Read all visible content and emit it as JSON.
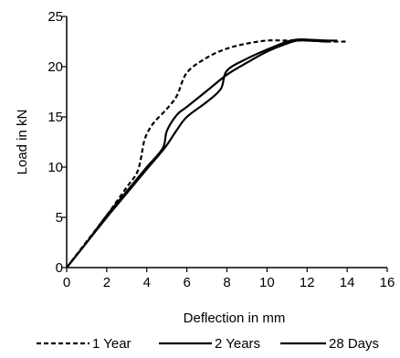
{
  "chart_data": {
    "type": "line",
    "title": "",
    "xlabel": "Deflection in mm",
    "ylabel": "Load in kN",
    "xlim": [
      0,
      16
    ],
    "ylim": [
      0,
      25
    ],
    "x_ticks": [
      0,
      2,
      4,
      6,
      8,
      10,
      12,
      14,
      16
    ],
    "y_ticks": [
      0,
      5,
      10,
      15,
      20,
      25
    ],
    "grid": false,
    "legend_position": "bottom",
    "line_color": "#000000",
    "series": [
      {
        "name": "1 Year",
        "style": "dashed",
        "x": [
          0,
          1,
          2,
          3,
          3.5,
          3.7,
          3.9,
          4.3,
          5,
          5.5,
          6,
          7,
          8,
          9,
          10,
          11,
          12,
          13,
          14
        ],
        "y": [
          0,
          2.6,
          5.2,
          8.0,
          9.4,
          10.8,
          12.8,
          14.3,
          15.8,
          17.1,
          19.4,
          20.9,
          21.8,
          22.3,
          22.6,
          22.6,
          22.6,
          22.5,
          22.5
        ]
      },
      {
        "name": "2 Years",
        "style": "solid",
        "x": [
          0,
          1,
          2,
          3,
          4,
          4.6,
          5,
          5.5,
          6,
          7,
          7.7,
          8,
          9,
          10,
          11,
          11.5,
          12,
          13,
          13.5
        ],
        "y": [
          0,
          2.5,
          5.0,
          7.4,
          9.8,
          11.2,
          12.2,
          13.7,
          15.0,
          16.5,
          17.8,
          19.6,
          20.8,
          21.7,
          22.5,
          22.7,
          22.7,
          22.6,
          22.6
        ]
      },
      {
        "name": "28 Days",
        "style": "solid",
        "x": [
          0,
          1,
          2,
          3,
          4,
          4.8,
          5,
          5.5,
          6,
          7,
          8,
          9,
          10,
          11,
          11.5,
          12,
          13
        ],
        "y": [
          0,
          2.5,
          5.2,
          7.6,
          10.0,
          11.9,
          13.6,
          15.2,
          16.0,
          17.6,
          19.2,
          20.4,
          21.5,
          22.3,
          22.6,
          22.6,
          22.5
        ]
      }
    ]
  }
}
